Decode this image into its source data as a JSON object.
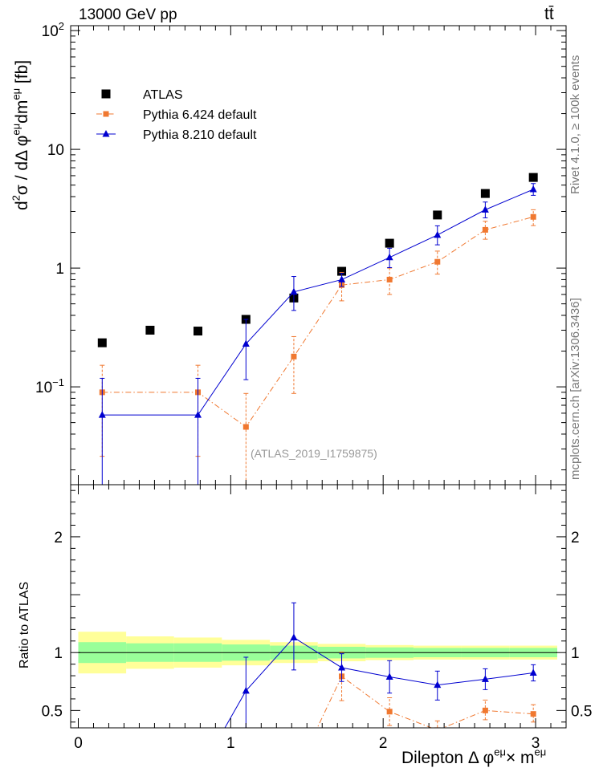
{
  "header": {
    "energy_label": "13000 GeV pp",
    "process_label": "tt̄"
  },
  "side_labels": {
    "rivet": "Rivet 4.1.0, ≥ 100k events",
    "mcplots": "mcplots.cern.ch [arXiv:1306.3436]"
  },
  "colors": {
    "atlas": "#000000",
    "pythia6": "#f07830",
    "pythia8": "#0000d0",
    "band_inner": "#99ff99",
    "band_outer": "#ffff99"
  },
  "chart_data": [
    {
      "type": "scatter",
      "panel": "main",
      "title": "13000 GeV pp",
      "annotation": "(ATLAS_2019_I1759875)",
      "xlabel": "",
      "ylabel": {
        "text": "d",
        "sup1": "2",
        "mid": "σ / dΔ φ",
        "sup2": "eμ",
        "mid2": "dm",
        "sup3": "eμ",
        "unit": " [fb]"
      },
      "yscale": "log",
      "xlim": [
        -0.05,
        3.2
      ],
      "ylim": [
        0.015,
        110
      ],
      "yticks": [
        {
          "value": 100,
          "base": "10",
          "exp": "2"
        },
        {
          "value": 10,
          "base": "10",
          "exp": ""
        },
        {
          "value": 1,
          "base": "1",
          "exp": ""
        },
        {
          "value": 0.1,
          "base": "10",
          "exp": "−1"
        }
      ],
      "legend": {
        "position": "top-left",
        "entries": [
          {
            "key": "atlas",
            "label": "ATLAS"
          },
          {
            "key": "pythia6",
            "label": "Pythia 6.424 default"
          },
          {
            "key": "pythia8",
            "label": "Pythia 8.210 default"
          }
        ]
      },
      "series": [
        {
          "name": "ATLAS",
          "key": "atlas",
          "style": "points",
          "marker": "square",
          "x": [
            0.157,
            0.471,
            0.785,
            1.1,
            1.414,
            1.728,
            2.042,
            2.356,
            2.67,
            2.985
          ],
          "y": [
            0.235,
            0.3,
            0.295,
            0.37,
            0.56,
            0.94,
            1.62,
            2.8,
            4.25,
            5.8
          ]
        },
        {
          "name": "Pythia 6.424 default",
          "key": "pythia6",
          "style": "dashdot",
          "marker": "square",
          "x": [
            0.157,
            0.785,
            1.1,
            1.414,
            1.728,
            2.042,
            2.356,
            2.67,
            2.985
          ],
          "y": [
            0.09,
            0.09,
            0.046,
            0.18,
            0.72,
            0.8,
            1.13,
            2.1,
            2.7
          ],
          "err_low": [
            0.064,
            0.064,
            0.032,
            0.092,
            0.19,
            0.2,
            0.24,
            0.35,
            0.42
          ],
          "err_high": [
            0.062,
            0.062,
            0.042,
            0.085,
            0.2,
            0.2,
            0.26,
            0.38,
            0.4
          ]
        },
        {
          "name": "Pythia 8.210 default",
          "key": "pythia8",
          "style": "solid",
          "marker": "triangle",
          "x": [
            0.157,
            0.785,
            1.1,
            1.414,
            1.728,
            2.042,
            2.356,
            2.67,
            2.985
          ],
          "y": [
            0.058,
            0.058,
            0.23,
            0.63,
            0.8,
            1.23,
            1.9,
            3.1,
            4.6
          ],
          "err_low": [
            0.058,
            0.058,
            0.115,
            0.19,
            0.1,
            0.22,
            0.33,
            0.45,
            0.5
          ],
          "err_high": [
            0.06,
            0.06,
            0.14,
            0.22,
            0.1,
            0.24,
            0.37,
            0.5,
            0.55
          ]
        }
      ]
    },
    {
      "type": "line",
      "panel": "ratio",
      "xlabel": {
        "text": "Dilepton Δ φ",
        "sup1": "eμ",
        "mid": "× m",
        "sup2": "eμ"
      },
      "ylabel": "Ratio to ATLAS",
      "xlim": [
        -0.05,
        3.2
      ],
      "ylim": [
        0.35,
        2.45
      ],
      "xticks": [
        0,
        1,
        2,
        3
      ],
      "yticks": [
        0.5,
        1,
        2
      ],
      "bands": {
        "edges": [
          0,
          0.314,
          0.628,
          0.942,
          1.257,
          1.571,
          1.885,
          2.199,
          2.513,
          2.827,
          3.142
        ],
        "inner_low": [
          0.91,
          0.92,
          0.92,
          0.93,
          0.94,
          0.95,
          0.955,
          0.96,
          0.96,
          0.96
        ],
        "inner_high": [
          1.09,
          1.08,
          1.08,
          1.07,
          1.06,
          1.05,
          1.045,
          1.04,
          1.04,
          1.04
        ],
        "outer_low": [
          0.82,
          0.86,
          0.87,
          0.89,
          0.91,
          0.925,
          0.935,
          0.94,
          0.94,
          0.94
        ],
        "outer_high": [
          1.18,
          1.14,
          1.13,
          1.11,
          1.09,
          1.075,
          1.065,
          1.06,
          1.06,
          1.06
        ]
      },
      "series": [
        {
          "name": "Pythia 6.424 default",
          "key": "pythia6",
          "style": "dashdot",
          "marker": "square",
          "x": [
            1.728,
            2.042,
            2.356,
            2.67,
            2.985
          ],
          "y": [
            0.795,
            0.49,
            0.33,
            0.5,
            0.47
          ],
          "err_low": [
            0.21,
            0.12,
            0.08,
            0.08,
            0.07
          ],
          "err_high": [
            0.21,
            0.12,
            0.08,
            0.09,
            0.08
          ],
          "from": {
            "x": 1.55,
            "y": 0.3
          }
        },
        {
          "name": "Pythia 8.210 default",
          "key": "pythia8",
          "style": "solid",
          "marker": "triangle",
          "x": [
            1.1,
            1.414,
            1.728,
            2.042,
            2.356,
            2.67,
            2.985
          ],
          "y": [
            0.67,
            1.13,
            0.87,
            0.79,
            0.72,
            0.77,
            0.825
          ],
          "err_low": [
            0.33,
            0.28,
            0.12,
            0.14,
            0.13,
            0.09,
            0.07
          ],
          "err_high": [
            0.29,
            0.3,
            0.12,
            0.14,
            0.12,
            0.09,
            0.07
          ],
          "from": {
            "x": 0.94,
            "y": 0.3
          }
        }
      ]
    }
  ]
}
